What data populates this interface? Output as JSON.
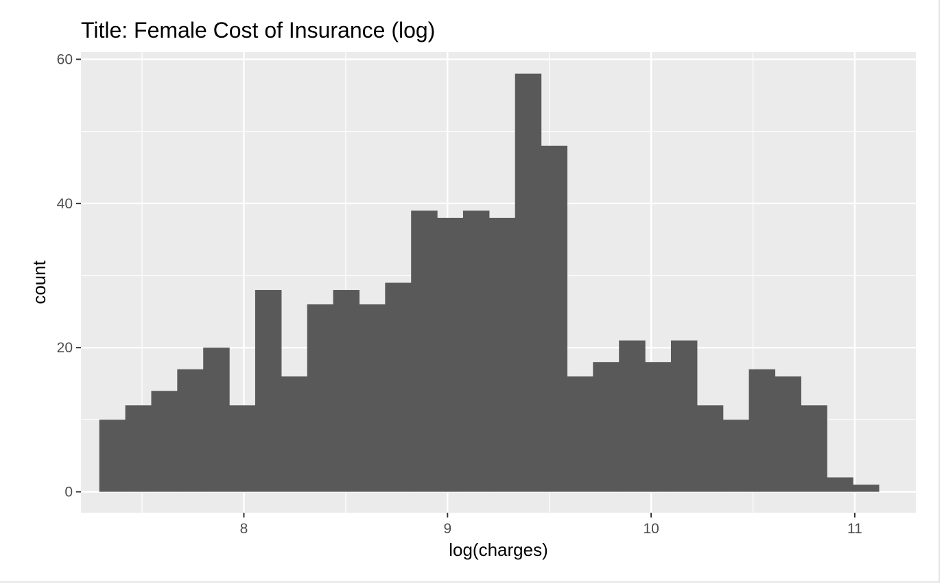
{
  "chart_data": {
    "type": "bar",
    "title": "Title: Female Cost of Insurance (log)",
    "xlabel": "log(charges)",
    "ylabel": "count",
    "xlim": [
      7.2,
      11.3
    ],
    "ylim": [
      -2.9,
      61
    ],
    "x_ticks": [
      8,
      9,
      10,
      11
    ],
    "y_ticks": [
      0,
      20,
      40,
      60
    ],
    "bin_width": 0.1276,
    "bins_start": 7.29,
    "counts": [
      10,
      12,
      14,
      17,
      20,
      12,
      28,
      16,
      26,
      28,
      26,
      29,
      39,
      38,
      39,
      38,
      58,
      48,
      16,
      18,
      21,
      18,
      21,
      12,
      10,
      17,
      16,
      12,
      2,
      1
    ],
    "grid": true,
    "bar_color": "#595959",
    "panel_color": "#ebebeb",
    "grid_color": "#ffffff"
  }
}
